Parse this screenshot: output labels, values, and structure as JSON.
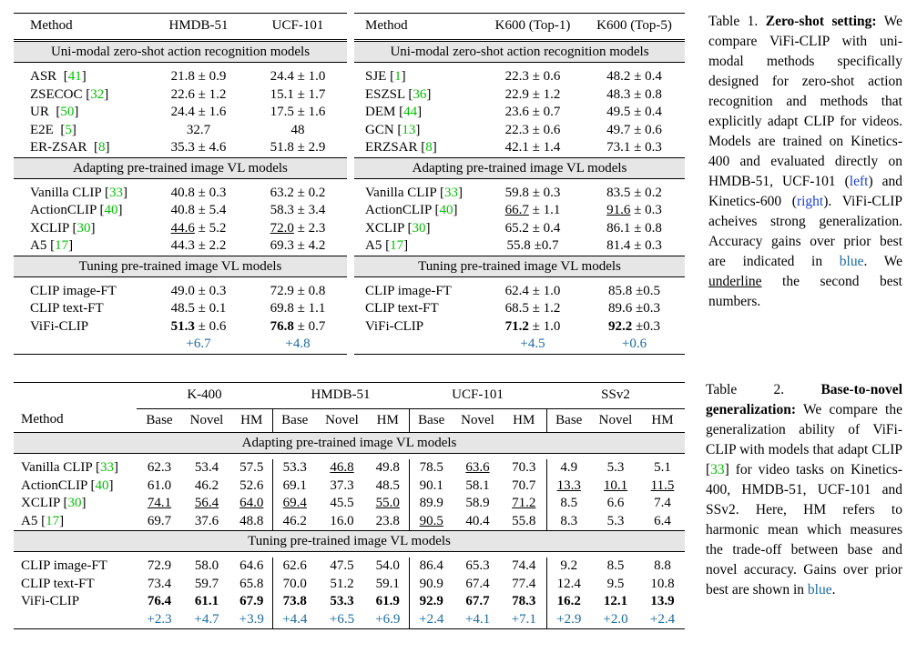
{
  "table1a": {
    "headers": [
      "Method",
      "HMDB-51",
      "UCF-101"
    ],
    "sections": [
      {
        "title": "Uni-modal zero-shot action recognition models",
        "rows": [
          {
            "name": "ASR",
            "ref": "41",
            "v1": "21.8 ± 0.9",
            "v2": "24.4 ± 1.0"
          },
          {
            "name": "ZSECOC",
            "ref": "32",
            "v1": "22.6 ± 1.2",
            "v2": "15.1 ± 1.7"
          },
          {
            "name": "UR",
            "ref": "50",
            "v1": "24.4 ± 1.6",
            "v2": "17.5 ± 1.6"
          },
          {
            "name": "E2E",
            "ref": "5",
            "v1": "32.7",
            "v2": "48"
          },
          {
            "name": "ER-ZSAR",
            "ref": "8",
            "v1": "35.3 ± 4.6",
            "v2": "51.8 ± 2.9"
          }
        ]
      },
      {
        "title": "Adapting pre-trained image VL models",
        "rows": [
          {
            "name": "Vanilla CLIP",
            "ref": "33",
            "v1": "40.8 ± 0.3",
            "v2": "63.2 ± 0.2"
          },
          {
            "name": "ActionCLIP",
            "ref": "40",
            "v1": "40.8 ± 5.4",
            "v2": "58.3 ± 3.4"
          },
          {
            "name": "XCLIP",
            "ref": "30",
            "v1a": "44.6",
            "v1b": " ± 5.2",
            "v2a": "72.0",
            "v2b": " ± 2.3"
          },
          {
            "name": "A5",
            "ref": "17",
            "v1": "44.3 ± 2.2",
            "v2": "69.3 ± 4.2"
          }
        ]
      },
      {
        "title": "Tuning pre-trained image VL models",
        "rows": [
          {
            "name": "CLIP image-FT",
            "v1": "49.0 ± 0.3",
            "v2": "72.9 ± 0.8"
          },
          {
            "name": "CLIP text-FT",
            "v1": "48.5 ± 0.1",
            "v2": "69.8 ± 1.1"
          },
          {
            "name": "ViFi-CLIP",
            "v1a": "51.3",
            "v1b": " ± 0.6",
            "v2a": "76.8",
            "v2b": " ± 0.7"
          }
        ]
      }
    ],
    "gains": [
      "+6.7",
      "+4.8"
    ]
  },
  "table1b": {
    "headers": [
      "Method",
      "K600 (Top-1)",
      "K600 (Top-5)"
    ],
    "sections": [
      {
        "title": "Uni-modal zero-shot action recognition models",
        "rows": [
          {
            "name": "SJE",
            "ref": "1",
            "v1": "22.3 ± 0.6",
            "v2": "48.2 ± 0.4"
          },
          {
            "name": "ESZSL",
            "ref": "36",
            "v1": "22.9 ± 1.2",
            "v2": "48.3 ± 0.8"
          },
          {
            "name": "DEM",
            "ref": "44",
            "v1": "23.6 ± 0.7",
            "v2": "49.5 ± 0.4"
          },
          {
            "name": "GCN",
            "ref": "13",
            "v1": "22.3 ± 0.6",
            "v2": "49.7 ± 0.6"
          },
          {
            "name": "ERZSAR",
            "ref": "8",
            "v1": "42.1 ± 1.4",
            "v2": "73.1 ± 0.3"
          }
        ]
      },
      {
        "title": "Adapting pre-trained image VL models",
        "rows": [
          {
            "name": "Vanilla CLIP",
            "ref": "33",
            "v1": "59.8 ± 0.3",
            "v2": "83.5 ± 0.2"
          },
          {
            "name": "ActionCLIP",
            "ref": "40",
            "v1a": "66.7",
            "v1b": " ± 1.1",
            "v2a": "91.6",
            "v2b": " ± 0.3"
          },
          {
            "name": "XCLIP",
            "ref": "30",
            "v1": "65.2 ± 0.4",
            "v2": "86.1 ± 0.8"
          },
          {
            "name": "A5",
            "ref": "17",
            "v1": "55.8 ±0.7",
            "v2": "81.4 ± 0.3"
          }
        ]
      },
      {
        "title": "Tuning pre-trained image VL models",
        "rows": [
          {
            "name": "CLIP image-FT",
            "v1": "62.4 ± 1.0",
            "v2": "85.8 ±0.5"
          },
          {
            "name": "CLIP text-FT",
            "v1": "68.5 ± 1.2",
            "v2": "89.6 ±0.3"
          },
          {
            "name": "ViFi-CLIP",
            "v1a": "71.2",
            "v1b": " ± 1.0",
            "v2a": "92.2",
            "v2b": " ±0.3"
          }
        ]
      }
    ],
    "gains": [
      "+4.5",
      "+0.6"
    ]
  },
  "caption1": {
    "label": "Table 1.",
    "title": "Zero-shot setting:",
    "p1": "We compare ViFi-CLIP with uni-modal methods specifically designed for zero-shot action recognition and methods that explicitly adapt CLIP for videos. Models are trained on Kinetics-400 and evaluated directly on HMDB-51, UCF-101 (",
    "left": "left",
    "p2": ") and Kinetics-600 (",
    "right": "right",
    "p3": "). ViFi-CLIP acheives strong generalization. Accuracy gains over prior best are indicated in ",
    "blue": "blue",
    "p4": ". We ",
    "underline": "underline",
    "p5": " the second best numbers."
  },
  "table2": {
    "groups": [
      "K-400",
      "HMDB-51",
      "UCF-101",
      "SSv2"
    ],
    "method_header": "Method",
    "subheaders": [
      "Base",
      "Novel",
      "HM"
    ],
    "sections": [
      {
        "title": "Adapting pre-trained image VL models",
        "rows": [
          {
            "name": "Vanilla CLIP",
            "ref": "33",
            "vals": [
              "62.3",
              "53.4",
              "57.5",
              "53.3",
              "46.8",
              "49.8",
              "78.5",
              "63.6",
              "70.3",
              "4.9",
              "5.3",
              "5.1"
            ]
          },
          {
            "name": "ActionCLIP",
            "ref": "40",
            "vals": [
              "61.0",
              "46.2",
              "52.6",
              "69.1",
              "37.3",
              "48.5",
              "90.1",
              "58.1",
              "70.7",
              "13.3",
              "10.1",
              "11.5"
            ]
          },
          {
            "name": "XCLIP",
            "ref": "30",
            "vals": [
              "74.1",
              "56.4",
              "64.0",
              "69.4",
              "45.5",
              "55.0",
              "89.9",
              "58.9",
              "71.2",
              "8.5",
              "6.6",
              "7.4"
            ]
          },
          {
            "name": "A5",
            "ref": "17",
            "vals": [
              "69.7",
              "37.6",
              "48.8",
              "46.2",
              "16.0",
              "23.8",
              "90.5",
              "40.4",
              "55.8",
              "8.3",
              "5.3",
              "6.4"
            ]
          }
        ]
      },
      {
        "title": "Tuning pre-trained image VL models",
        "rows": [
          {
            "name": "CLIP image-FT",
            "vals": [
              "72.9",
              "58.0",
              "64.6",
              "62.6",
              "47.5",
              "54.0",
              "86.4",
              "65.3",
              "74.4",
              "9.2",
              "8.5",
              "8.8"
            ]
          },
          {
            "name": "CLIP text-FT",
            "vals": [
              "73.4",
              "59.7",
              "65.8",
              "70.0",
              "51.2",
              "59.1",
              "90.9",
              "67.4",
              "77.4",
              "12.4",
              "9.5",
              "10.8"
            ]
          },
          {
            "name": "ViFi-CLIP",
            "vals": [
              "76.4",
              "61.1",
              "67.9",
              "73.8",
              "53.3",
              "61.9",
              "92.9",
              "67.7",
              "78.3",
              "16.2",
              "12.1",
              "13.9"
            ]
          }
        ]
      }
    ],
    "gains": [
      "+2.3",
      "+4.7",
      "+3.9",
      "+4.4",
      "+6.5",
      "+6.9",
      "+2.4",
      "+4.1",
      "+7.1",
      "+2.9",
      "+2.0",
      "+2.4"
    ]
  },
  "caption2": {
    "label": "Table 2.",
    "title": "Base-to-novel generalization:",
    "p1": "We compare the generalization ability of ViFi-CLIP with models that adapt CLIP [",
    "ref": "33",
    "p2": "] for video tasks on Kinetics-400, HMDB-51, UCF-101 and SSv2. Here, HM refers to harmonic mean which measures the trade-off between base and novel accuracy. Gains over prior best are shown in ",
    "blue": "blue",
    "p3": "."
  }
}
